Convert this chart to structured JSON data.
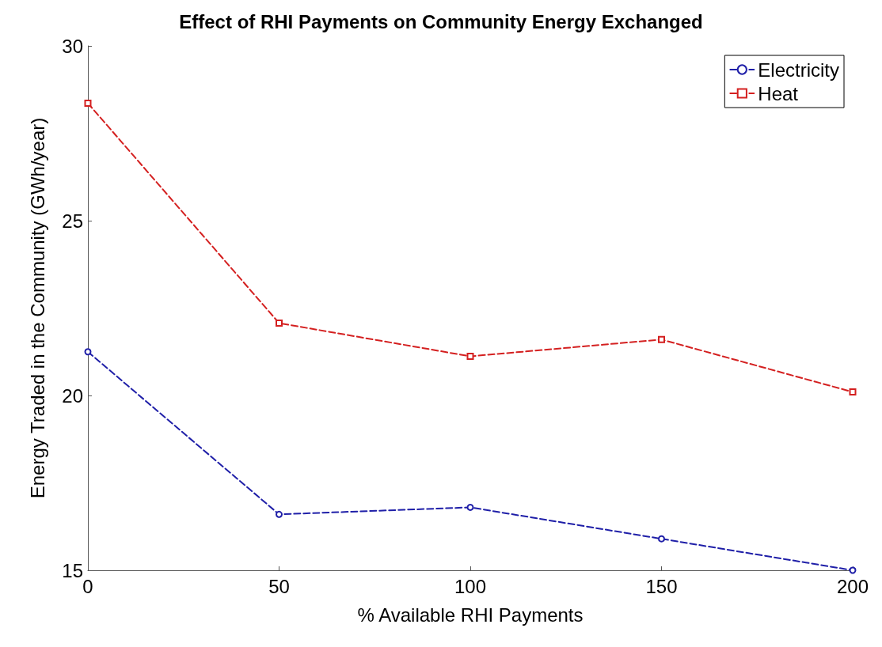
{
  "chart_data": {
    "type": "line",
    "title": "Effect of RHI Payments on Community Energy Exchanged",
    "xlabel": "% Available RHI Payments",
    "ylabel": "Energy Traded in the Community (GWh/year)",
    "x": [
      0,
      50,
      100,
      150,
      200
    ],
    "series": [
      {
        "name": "Electricity",
        "color": "#1f1fa8",
        "marker": "circle",
        "values": [
          21.25,
          16.6,
          16.8,
          15.9,
          15.0
        ]
      },
      {
        "name": "Heat",
        "color": "#d42020",
        "marker": "square",
        "values": [
          28.36,
          22.07,
          21.12,
          21.6,
          20.1
        ]
      }
    ],
    "xlim": [
      0,
      200
    ],
    "xticks": [
      0,
      50,
      100,
      150,
      200
    ],
    "ylim": [
      15,
      30
    ],
    "yticks": [
      15,
      20,
      25,
      30
    ],
    "grid": false,
    "legend": "top right",
    "line_style": "dashed"
  }
}
